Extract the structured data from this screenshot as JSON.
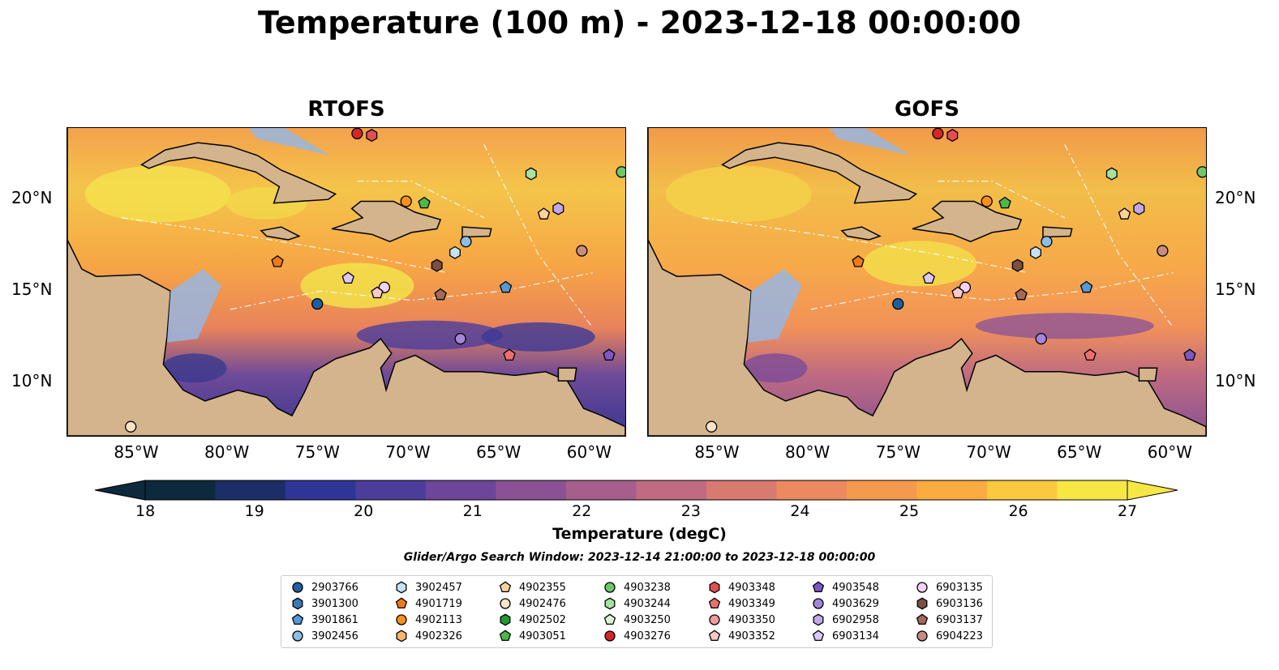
{
  "title": "Temperature (100 m) - 2023-12-18 00:00:00",
  "panels": [
    {
      "title": "RTOFS"
    },
    {
      "title": "GOFS"
    }
  ],
  "axes": {
    "x_ticks": [
      "85°W",
      "80°W",
      "75°W",
      "70°W",
      "65°W",
      "60°W"
    ],
    "y_ticks": [
      "20°N",
      "15°N",
      "10°N"
    ],
    "lon_range": [
      -89,
      -58.2
    ],
    "lat_range": [
      7.1,
      23.9
    ]
  },
  "colorbar": {
    "label": "Temperature (degC)",
    "ticks": [
      "18",
      "19",
      "20",
      "21",
      "22",
      "23",
      "24",
      "25",
      "26",
      "27"
    ],
    "range": [
      18,
      27
    ],
    "colors": [
      "#0c2a3c",
      "#1b2f66",
      "#2e3596",
      "#4d3d9b",
      "#6c4699",
      "#8a5294",
      "#a65f8d",
      "#c06b81",
      "#d97a70",
      "#ea8a5e",
      "#f59a4c",
      "#fbac40",
      "#fbc93e",
      "#f7e745"
    ]
  },
  "search_window": "Glider/Argo Search Window: 2023-12-14 21:00:00 to 2023-12-18 00:00:00",
  "legend": [
    {
      "id": "2903766",
      "marker": "circle",
      "color": "#1f5fa0"
    },
    {
      "id": "3901300",
      "marker": "hexagon",
      "color": "#3a78b6"
    },
    {
      "id": "3901861",
      "marker": "pentagon",
      "color": "#5599d6"
    },
    {
      "id": "3902456",
      "marker": "circle",
      "color": "#8bbde6"
    },
    {
      "id": "3902457",
      "marker": "hexagon",
      "color": "#c5e3f6"
    },
    {
      "id": "4901719",
      "marker": "pentagon",
      "color": "#ef7a1a"
    },
    {
      "id": "4902113",
      "marker": "circle",
      "color": "#f7901e"
    },
    {
      "id": "4902326",
      "marker": "hexagon",
      "color": "#fbb56c"
    },
    {
      "id": "4902355",
      "marker": "pentagon",
      "color": "#fcd0a0"
    },
    {
      "id": "4902476",
      "marker": "circle",
      "color": "#fde2c8"
    },
    {
      "id": "4902502",
      "marker": "hexagon",
      "color": "#1f9a2d"
    },
    {
      "id": "4903051",
      "marker": "pentagon",
      "color": "#4cb84a"
    },
    {
      "id": "4903238",
      "marker": "circle",
      "color": "#6ec76a"
    },
    {
      "id": "4903244",
      "marker": "hexagon",
      "color": "#a6e2a0"
    },
    {
      "id": "4903250",
      "marker": "pentagon",
      "color": "#d9f4d4"
    },
    {
      "id": "4903276",
      "marker": "circle",
      "color": "#d62728"
    },
    {
      "id": "4903348",
      "marker": "hexagon",
      "color": "#e24f4f"
    },
    {
      "id": "4903349",
      "marker": "pentagon",
      "color": "#ee6f6f"
    },
    {
      "id": "4903350",
      "marker": "circle",
      "color": "#f59a9a"
    },
    {
      "id": "4903352",
      "marker": "pentagon",
      "color": "#f9c8c8"
    },
    {
      "id": "4903548",
      "marker": "pentagon",
      "color": "#7e57c2"
    },
    {
      "id": "4903629",
      "marker": "circle",
      "color": "#a386d6"
    },
    {
      "id": "6902958",
      "marker": "hexagon",
      "color": "#c2a8e8"
    },
    {
      "id": "6903134",
      "marker": "pentagon",
      "color": "#dcc8f6"
    },
    {
      "id": "6903135",
      "marker": "circle",
      "color": "#f3d2f4"
    },
    {
      "id": "6903136",
      "marker": "hexagon",
      "color": "#7a5043"
    },
    {
      "id": "6903137",
      "marker": "pentagon",
      "color": "#a06b5a"
    },
    {
      "id": "6904223",
      "marker": "circle",
      "color": "#c78c80"
    }
  ],
  "float_positions": [
    {
      "id": "2903766",
      "lon": -75.2,
      "lat": 14.3
    },
    {
      "id": "3902457",
      "lon": -67.6,
      "lat": 17.1
    },
    {
      "id": "3902456",
      "lon": -67.0,
      "lat": 17.7
    },
    {
      "id": "3901861",
      "lon": -64.8,
      "lat": 15.2
    },
    {
      "id": "4901719",
      "lon": -77.4,
      "lat": 16.6
    },
    {
      "id": "4902113",
      "lon": -70.3,
      "lat": 19.9
    },
    {
      "id": "4902355",
      "lon": -62.7,
      "lat": 19.2
    },
    {
      "id": "4902476",
      "lon": -85.5,
      "lat": 7.6
    },
    {
      "id": "4903051",
      "lon": -69.3,
      "lat": 19.8
    },
    {
      "id": "4903244",
      "lon": -63.4,
      "lat": 21.4
    },
    {
      "id": "4903276",
      "lon": -73.0,
      "lat": 23.6
    },
    {
      "id": "4903348",
      "lon": -72.2,
      "lat": 23.5
    },
    {
      "id": "4903349",
      "lon": -64.6,
      "lat": 11.5
    },
    {
      "id": "6903134",
      "lon": -73.5,
      "lat": 15.7
    },
    {
      "id": "6903135",
      "lon": -71.5,
      "lat": 15.2
    },
    {
      "id": "4903352",
      "lon": -71.9,
      "lat": 14.9
    },
    {
      "id": "6903136",
      "lon": -68.6,
      "lat": 16.4
    },
    {
      "id": "6903137",
      "lon": -68.4,
      "lat": 14.8
    },
    {
      "id": "6904223",
      "lon": -60.6,
      "lat": 17.2
    },
    {
      "id": "4903629",
      "lon": -67.3,
      "lat": 12.4
    },
    {
      "id": "6902958",
      "lon": -61.9,
      "lat": 19.5
    },
    {
      "id": "4903238",
      "lon": -58.4,
      "lat": 21.5
    },
    {
      "id": "4903548",
      "lon": -59.1,
      "lat": 11.5
    }
  ]
}
